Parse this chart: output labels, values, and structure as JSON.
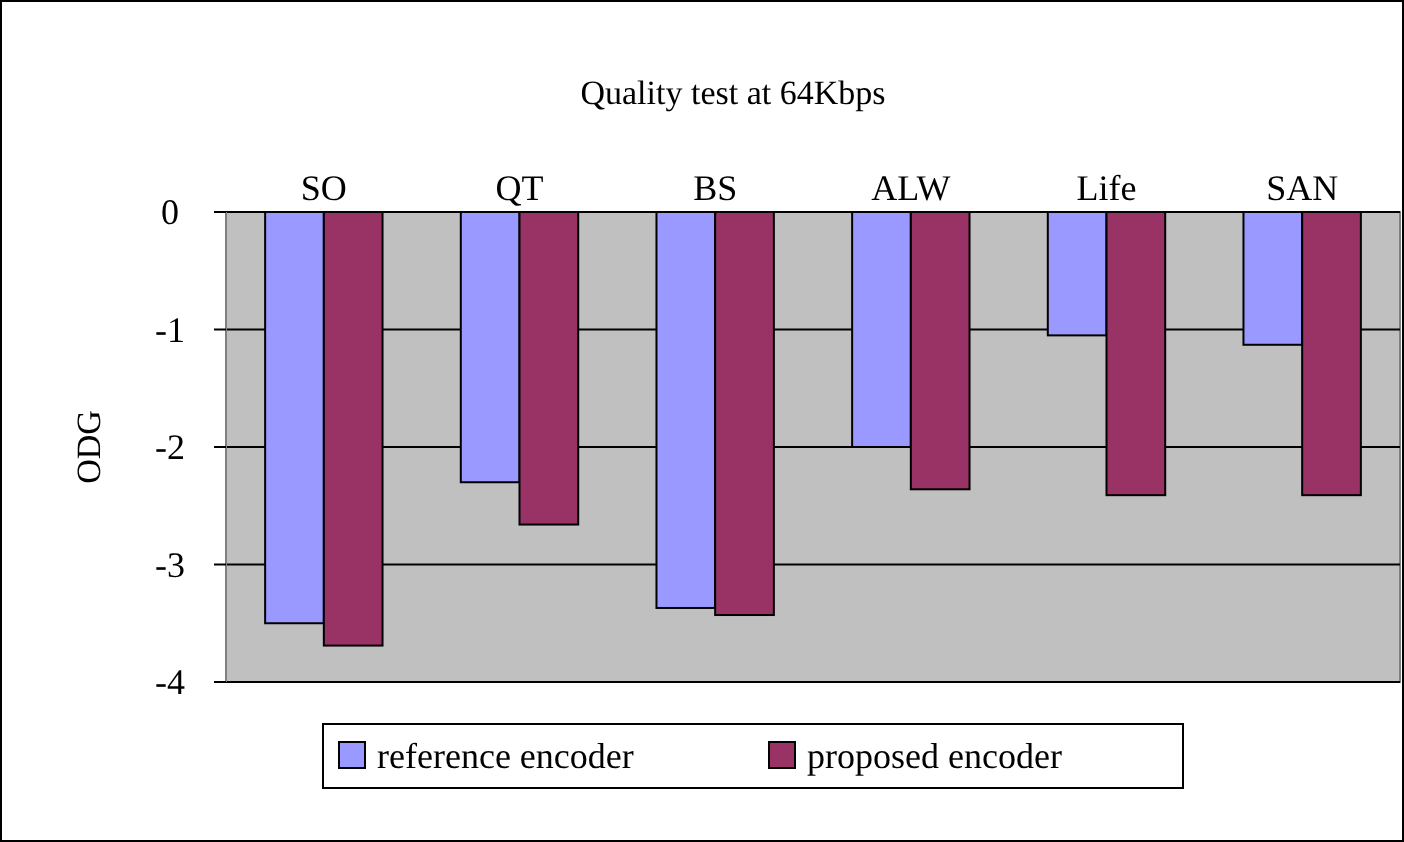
{
  "chart_data": {
    "type": "bar",
    "title": "Quality test at 64Kbps",
    "ylabel": "ODG",
    "categories": [
      "SO",
      "QT",
      "BS",
      "ALW",
      "Life",
      "SAN"
    ],
    "series": [
      {
        "name": "reference encoder",
        "color": "#9999ff",
        "values": [
          -3.5,
          -2.3,
          -3.37,
          -2.0,
          -1.05,
          -1.13
        ]
      },
      {
        "name": "proposed encoder",
        "color": "#993366",
        "values": [
          -3.69,
          -2.66,
          -3.43,
          -2.36,
          -2.41,
          -2.41
        ]
      }
    ],
    "ylim": [
      -4,
      0
    ],
    "yticks": [
      0,
      -1,
      -2,
      -3,
      -4
    ],
    "grid": "y",
    "legend": "bottom"
  }
}
